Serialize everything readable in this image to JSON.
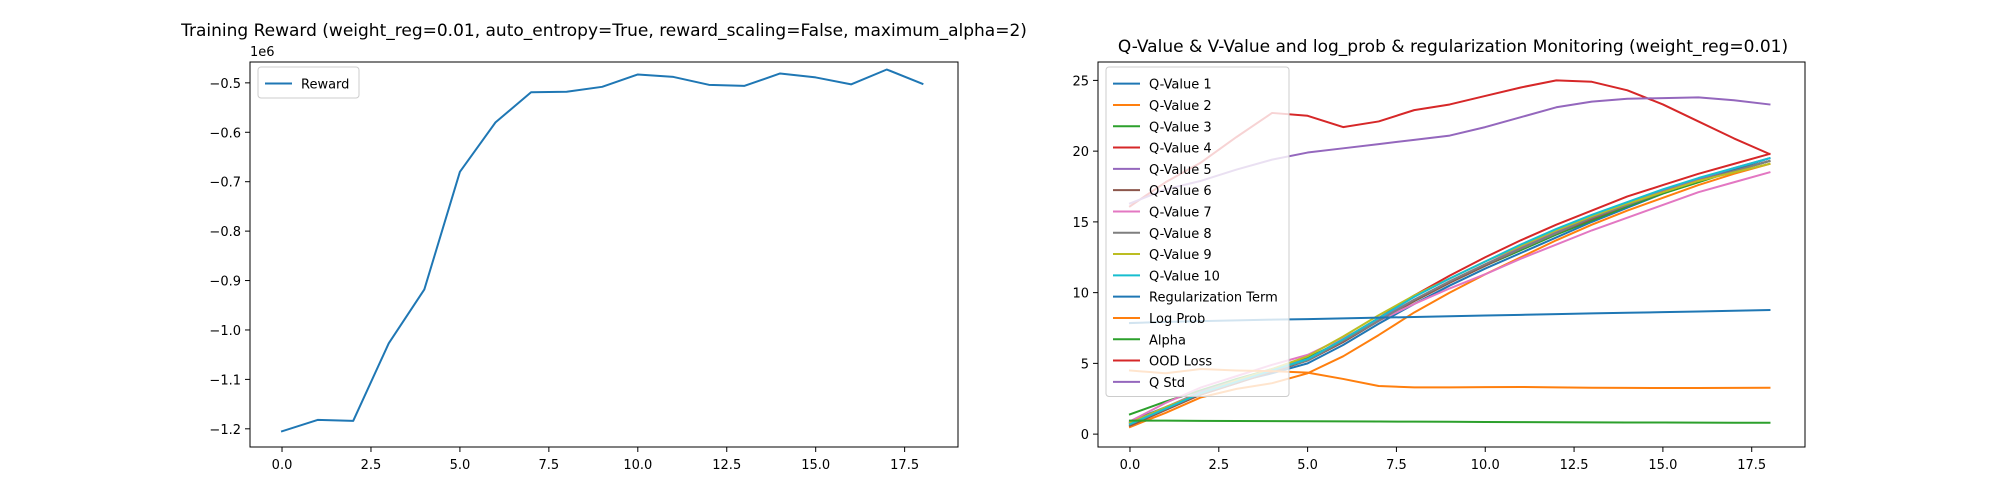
{
  "chart_data": [
    {
      "type": "line",
      "title": "Training Reward (weight_reg=0.01, auto_entropy=True, reward_scaling=False, maximum_alpha=2)",
      "xlabel": "",
      "ylabel": "",
      "y_offset_label": "1e6",
      "xlim": [
        -0.9,
        19.0
      ],
      "ylim": [
        -1.2368,
        -0.4578
      ],
      "x_ticks": [
        0.0,
        2.5,
        5.0,
        7.5,
        10.0,
        12.5,
        15.0,
        17.5
      ],
      "x_tick_labels": [
        "0.0",
        "2.5",
        "5.0",
        "7.5",
        "10.0",
        "12.5",
        "15.0",
        "17.5"
      ],
      "y_ticks": [
        -1.2,
        -1.1,
        -1.0,
        -0.9,
        -0.8,
        -0.7,
        -0.6,
        -0.5
      ],
      "y_tick_labels": [
        "−1.2",
        "−1.1",
        "−1.0",
        "−0.9",
        "−0.8",
        "−0.7",
        "−0.6",
        "−0.5"
      ],
      "grid": false,
      "legend_position": "upper-left",
      "x": [
        0,
        1,
        2,
        3,
        4,
        5,
        6,
        7,
        8,
        9,
        10,
        11,
        12,
        13,
        14,
        15,
        16,
        17,
        18
      ],
      "series": [
        {
          "name": "Reward",
          "color": "#1f77b4",
          "values": [
            -1.205,
            -1.182,
            -1.184,
            -1.027,
            -0.918,
            -0.68,
            -0.58,
            -0.519,
            -0.518,
            -0.508,
            -0.483,
            -0.488,
            -0.504,
            -0.506,
            -0.481,
            -0.489,
            -0.503,
            -0.473,
            -0.502
          ]
        }
      ]
    },
    {
      "type": "line",
      "title": "Q-Value & V-Value and log_prob & regularization Monitoring (weight_reg=0.01)",
      "xlabel": "",
      "ylabel": "",
      "xlim": [
        -0.9,
        19.0
      ],
      "ylim": [
        -0.91,
        26.3
      ],
      "x_ticks": [
        0.0,
        2.5,
        5.0,
        7.5,
        10.0,
        12.5,
        15.0,
        17.5
      ],
      "x_tick_labels": [
        "0.0",
        "2.5",
        "5.0",
        "7.5",
        "10.0",
        "12.5",
        "15.0",
        "17.5"
      ],
      "y_ticks": [
        0,
        5,
        10,
        15,
        20,
        25
      ],
      "y_tick_labels": [
        "0",
        "5",
        "10",
        "15",
        "20",
        "25"
      ],
      "grid": false,
      "legend_position": "upper-left",
      "x": [
        0,
        1,
        2,
        3,
        4,
        5,
        6,
        7,
        8,
        9,
        10,
        11,
        12,
        13,
        14,
        15,
        16,
        17,
        18
      ],
      "series": [
        {
          "name": "Q-Value 1",
          "color": "#1f77b4",
          "values": [
            0.9,
            1.9,
            2.9,
            3.7,
            4.3,
            5.0,
            6.3,
            7.8,
            9.2,
            10.5,
            11.7,
            12.8,
            13.9,
            15.0,
            16.0,
            17.0,
            17.9,
            18.7,
            19.5
          ]
        },
        {
          "name": "Q-Value 2",
          "color": "#ff7f0e",
          "values": [
            0.5,
            1.5,
            2.6,
            3.2,
            3.6,
            4.3,
            5.5,
            7.0,
            8.6,
            10.0,
            11.3,
            12.5,
            13.7,
            14.8,
            15.8,
            16.7,
            17.6,
            18.4,
            19.1
          ]
        },
        {
          "name": "Q-Value 3",
          "color": "#2ca02c",
          "values": [
            1.4,
            2.3,
            3.1,
            3.9,
            4.6,
            5.4,
            6.6,
            8.0,
            9.4,
            10.7,
            11.9,
            13.0,
            14.1,
            15.1,
            16.1,
            17.0,
            17.8,
            18.6,
            19.3
          ]
        },
        {
          "name": "Q-Value 4",
          "color": "#d62728",
          "values": [
            0.7,
            1.8,
            2.8,
            3.6,
            4.5,
            5.3,
            6.7,
            8.2,
            9.8,
            11.2,
            12.5,
            13.7,
            14.8,
            15.8,
            16.8,
            17.6,
            18.4,
            19.1,
            19.8
          ]
        },
        {
          "name": "Q-Value 5",
          "color": "#9467bd",
          "values": [
            0.8,
            1.9,
            3.0,
            3.8,
            4.6,
            5.3,
            6.6,
            8.1,
            9.5,
            10.8,
            12.0,
            13.2,
            14.3,
            15.3,
            16.3,
            17.2,
            18.0,
            18.8,
            19.5
          ]
        },
        {
          "name": "Q-Value 6",
          "color": "#8c564b",
          "values": [
            0.6,
            1.7,
            2.8,
            3.6,
            4.4,
            5.2,
            6.5,
            8.0,
            9.4,
            10.7,
            11.9,
            13.1,
            14.2,
            15.2,
            16.2,
            17.1,
            17.9,
            18.6,
            19.3
          ]
        },
        {
          "name": "Q-Value 7",
          "color": "#e377c2",
          "values": [
            0.9,
            2.2,
            3.3,
            4.1,
            4.9,
            5.6,
            6.8,
            8.0,
            9.2,
            10.3,
            11.3,
            12.4,
            13.4,
            14.4,
            15.3,
            16.2,
            17.1,
            17.8,
            18.5
          ]
        },
        {
          "name": "Q-Value 8",
          "color": "#7f7f7f",
          "values": [
            0.7,
            1.8,
            2.9,
            3.7,
            4.5,
            5.2,
            6.6,
            8.0,
            9.5,
            10.8,
            12.0,
            13.1,
            14.2,
            15.3,
            16.2,
            17.1,
            17.9,
            18.6,
            19.3
          ]
        },
        {
          "name": "Q-Value 9",
          "color": "#bcbd22",
          "values": [
            0.8,
            1.9,
            2.9,
            3.8,
            4.6,
            5.5,
            6.9,
            8.4,
            9.8,
            11.0,
            12.2,
            13.3,
            14.4,
            15.4,
            16.3,
            17.1,
            17.9,
            18.5,
            19.1
          ]
        },
        {
          "name": "Q-Value 10",
          "color": "#17becf",
          "values": [
            0.7,
            1.8,
            2.9,
            3.7,
            4.5,
            5.3,
            6.7,
            8.2,
            9.7,
            11.0,
            12.2,
            13.4,
            14.5,
            15.5,
            16.4,
            17.3,
            18.1,
            18.8,
            19.5
          ]
        },
        {
          "name": "Regularization Term",
          "color": "#1f77b4",
          "values": [
            7.85,
            7.93,
            7.99,
            8.04,
            8.09,
            8.13,
            8.18,
            8.23,
            8.28,
            8.33,
            8.38,
            8.43,
            8.48,
            8.53,
            8.58,
            8.62,
            8.67,
            8.72,
            8.77
          ]
        },
        {
          "name": "Log Prob",
          "color": "#ff7f0e",
          "values": [
            4.5,
            4.3,
            4.6,
            4.5,
            4.45,
            4.35,
            3.9,
            3.4,
            3.3,
            3.3,
            3.32,
            3.33,
            3.3,
            3.28,
            3.27,
            3.26,
            3.26,
            3.27,
            3.28
          ]
        },
        {
          "name": "Alpha",
          "color": "#2ca02c",
          "values": [
            0.95,
            0.95,
            0.94,
            0.93,
            0.92,
            0.91,
            0.9,
            0.89,
            0.88,
            0.87,
            0.86,
            0.85,
            0.84,
            0.83,
            0.82,
            0.82,
            0.81,
            0.8,
            0.8
          ]
        },
        {
          "name": "OOD Loss",
          "color": "#d62728",
          "values": [
            16.1,
            17.8,
            19.2,
            21.0,
            22.7,
            22.5,
            21.7,
            22.1,
            22.9,
            23.3,
            23.9,
            24.5,
            25.0,
            24.9,
            24.3,
            23.3,
            22.1,
            20.9,
            19.8
          ]
        },
        {
          "name": "Q Std",
          "color": "#9467bd",
          "values": [
            16.3,
            17.3,
            17.9,
            18.7,
            19.4,
            19.9,
            20.2,
            20.5,
            20.8,
            21.1,
            21.7,
            22.4,
            23.1,
            23.5,
            23.7,
            23.75,
            23.8,
            23.6,
            23.3
          ]
        }
      ]
    }
  ]
}
